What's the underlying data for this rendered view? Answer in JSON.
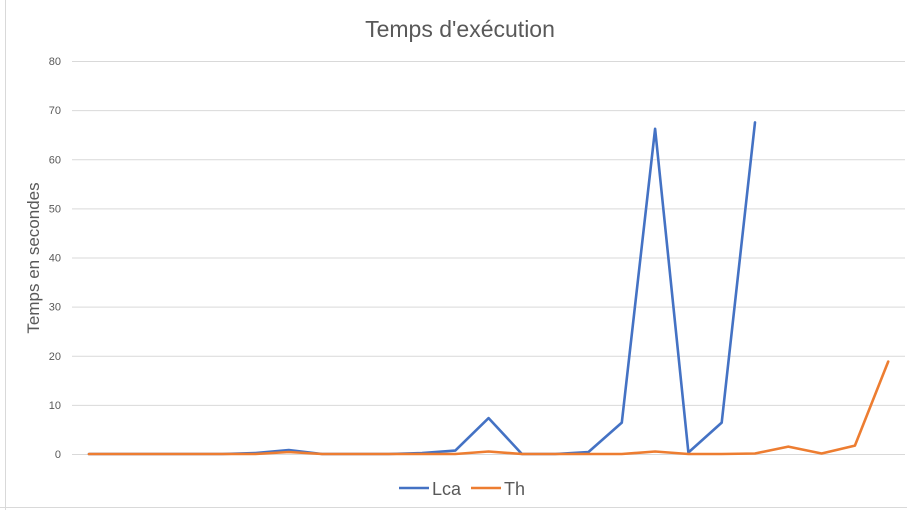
{
  "chart_data": {
    "type": "line",
    "title": "Temps d'exécution",
    "ylabel": "Temps en secondes",
    "xlabel": "",
    "ylim": [
      0,
      80
    ],
    "yticks": [
      0,
      10,
      20,
      30,
      40,
      50,
      60,
      70,
      80
    ],
    "grid": true,
    "legend_position": "bottom",
    "x": [
      1,
      2,
      3,
      4,
      5,
      6,
      7,
      8,
      9,
      10,
      11,
      12,
      13,
      14,
      15,
      16,
      17,
      18,
      19,
      20,
      21,
      22,
      23,
      24,
      25
    ],
    "series": [
      {
        "name": "Lca",
        "color": "#4472c4",
        "values": [
          0,
          0,
          0,
          0,
          0,
          0.2,
          0.8,
          0,
          0,
          0,
          0.2,
          0.7,
          7.3,
          0,
          0,
          0.4,
          6.4,
          66.2,
          0.3,
          6.4,
          67.5,
          null,
          null,
          null,
          null
        ]
      },
      {
        "name": "Th",
        "color": "#ed7d31",
        "values": [
          0,
          0,
          0,
          0,
          0,
          0,
          0.4,
          0,
          0,
          0,
          0,
          0,
          0.5,
          0,
          0,
          0,
          0,
          0.5,
          0,
          0,
          0.1,
          1.5,
          0.1,
          1.7,
          18.8
        ]
      }
    ]
  }
}
